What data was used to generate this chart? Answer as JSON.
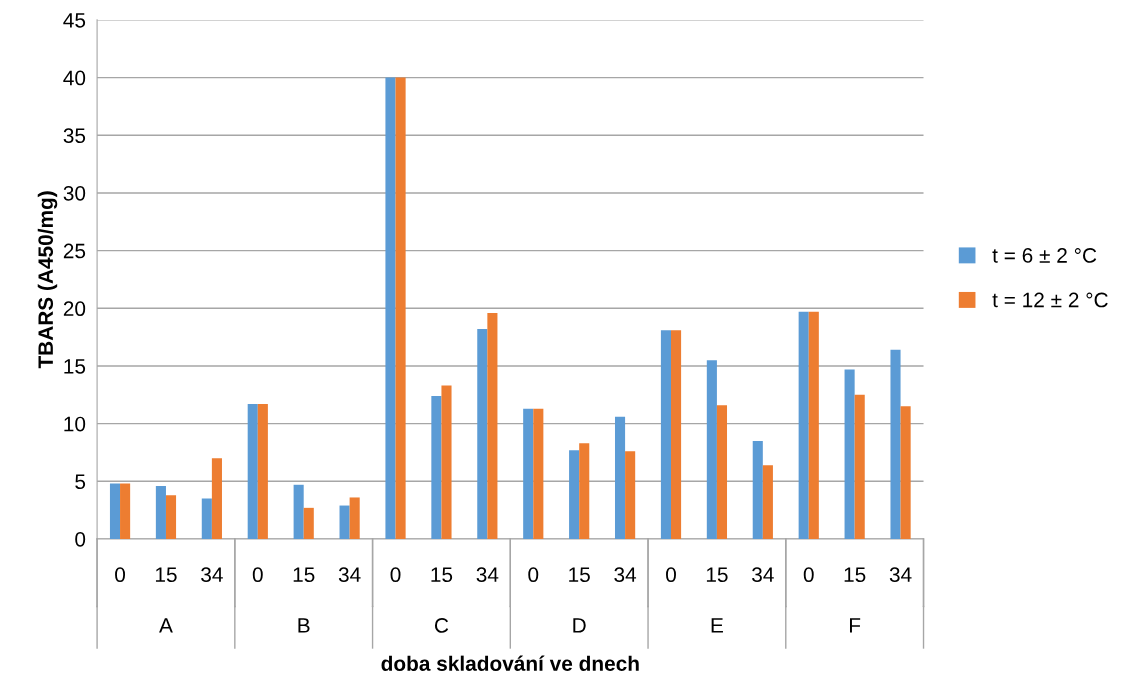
{
  "chart_data": {
    "type": "bar",
    "categories": [
      "0",
      "15",
      "34",
      "0",
      "15",
      "34",
      "0",
      "15",
      "34",
      "0",
      "15",
      "34",
      "0",
      "15",
      "34",
      "0",
      "15",
      "34"
    ],
    "annotations": [
      "A",
      "B",
      "C",
      "D",
      "E",
      "F"
    ],
    "xlabel": "doba skladování ve dnech",
    "ylabel": "TBARS (A450/mg)",
    "series": [
      {
        "name": "t = 6 ± 2 °C",
        "color": "#5b9bd5",
        "values": [
          4.8,
          4.6,
          3.5,
          11.7,
          4.7,
          2.9,
          40,
          12.4,
          18.2,
          11.3,
          7.7,
          10.6,
          18.1,
          15.5,
          8.5,
          19.7,
          14.7,
          16.4
        ]
      },
      {
        "name": "t = 12 ± 2 °C",
        "color": "#ed7d31",
        "values": [
          4.8,
          3.8,
          7.0,
          11.7,
          2.7,
          3.6,
          40,
          13.3,
          19.6,
          11.3,
          8.3,
          7.6,
          18.1,
          11.6,
          6.4,
          19.7,
          12.5,
          11.5
        ]
      }
    ],
    "ylim": [
      0,
      45
    ],
    "yticks": [
      0,
      5,
      10,
      15,
      20,
      25,
      30,
      35,
      40,
      45
    ],
    "grid": "y",
    "legend": "right"
  }
}
